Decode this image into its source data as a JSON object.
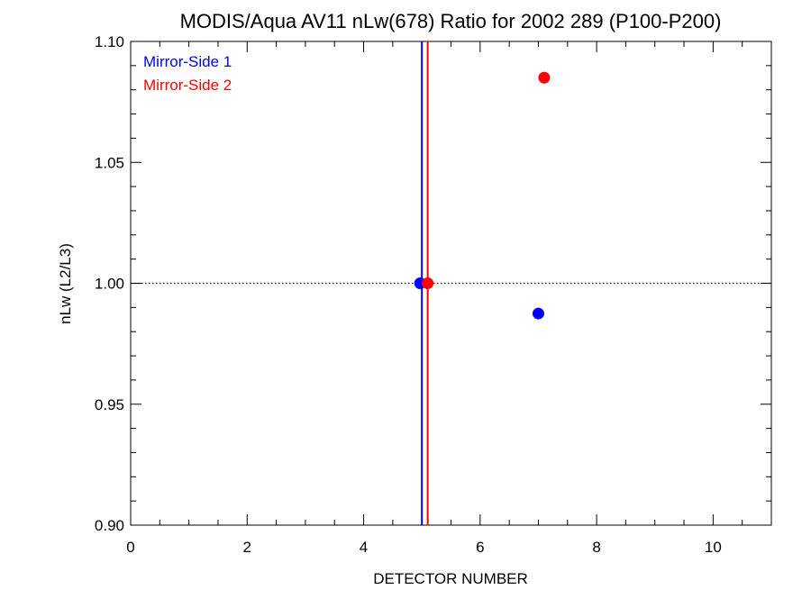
{
  "chart_data": {
    "type": "scatter",
    "title": "MODIS/Aqua AV11 nLw(678) Ratio for 2002 289 (P100-P200)",
    "xlabel": "DETECTOR NUMBER",
    "ylabel": "nLw (L2/L3)",
    "xlim": [
      0,
      11
    ],
    "ylim": [
      0.9,
      1.1
    ],
    "x_ticks": [
      0,
      2,
      4,
      6,
      8,
      10
    ],
    "x_tick_labels": [
      "0",
      "2",
      "4",
      "6",
      "8",
      "10"
    ],
    "y_ticks": [
      0.9,
      0.95,
      1.0,
      1.05,
      1.1
    ],
    "y_tick_labels": [
      "0.90",
      "0.95",
      "1.00",
      "1.05",
      "1.10"
    ],
    "x_minor_step": 0.5,
    "y_minor_step": 0.01,
    "reference_line": {
      "y": 1.0,
      "style": "dotted"
    },
    "legend_position": "top-left",
    "series": [
      {
        "name": "Mirror-Side 1",
        "color": "#0000ff",
        "points": [
          {
            "x": 4.97,
            "y": 1.0
          },
          {
            "x": 7.0,
            "y": 0.9875
          }
        ],
        "vline_x": 5.0
      },
      {
        "name": "Mirror-Side 2",
        "color": "#ff0000",
        "points": [
          {
            "x": 5.1,
            "y": 1.0
          },
          {
            "x": 7.1,
            "y": 1.085
          }
        ],
        "vline_x": 5.1
      }
    ]
  }
}
